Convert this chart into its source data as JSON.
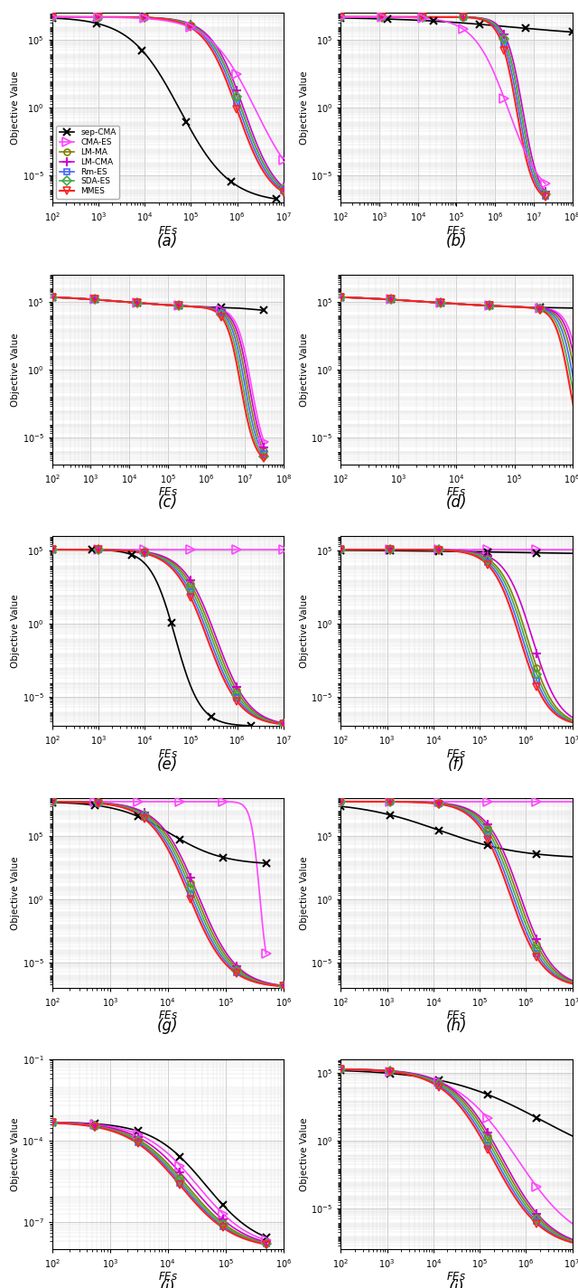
{
  "figsize": [
    6.4,
    14.25
  ],
  "nrows": 5,
  "ncols": 2,
  "subplot_labels": [
    "(a)",
    "(b)",
    "(c)",
    "(d)",
    "(e)",
    "(f)",
    "(g)",
    "(h)",
    "(i)",
    "(j)"
  ],
  "xlabel": "FEs",
  "ylabel": "Objective Value",
  "algorithms": [
    "sep-CMA",
    "CMA-ES",
    "LM-MA",
    "LM-CMA",
    "Rm-ES",
    "SDA-ES",
    "MMES"
  ],
  "algo_colors": {
    "sep-CMA": "#000000",
    "CMA-ES": "#FF44FF",
    "LM-MA": "#808000",
    "LM-CMA": "#CC00CC",
    "Rm-ES": "#4466FF",
    "SDA-ES": "#44AA44",
    "MMES": "#FF2222"
  },
  "algo_markers": {
    "sep-CMA": "x",
    "CMA-ES": ">",
    "LM-MA": "o",
    "LM-CMA": "+",
    "Rm-ES": "s",
    "SDA-ES": "D",
    "MMES": "v"
  },
  "algo_ms": {
    "sep-CMA": 6,
    "CMA-ES": 7,
    "LM-MA": 5,
    "LM-CMA": 7,
    "Rm-ES": 5,
    "SDA-ES": 5,
    "MMES": 6
  },
  "algo_lw": {
    "sep-CMA": 1.2,
    "CMA-ES": 1.2,
    "LM-MA": 1.2,
    "LM-CMA": 1.2,
    "Rm-ES": 1.2,
    "SDA-ES": 1.2,
    "MMES": 1.5
  },
  "algo_mew": {
    "sep-CMA": 1.5,
    "CMA-ES": 1.2,
    "LM-MA": 1.2,
    "LM-CMA": 1.5,
    "Rm-ES": 1.2,
    "SDA-ES": 1.2,
    "MMES": 1.2
  }
}
